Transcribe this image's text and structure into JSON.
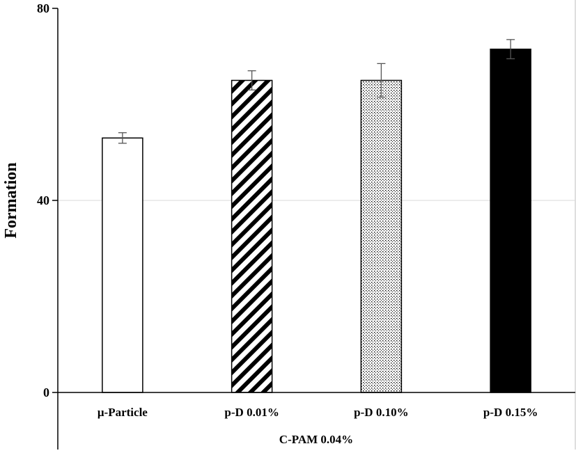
{
  "chart_data": {
    "type": "bar",
    "title": "",
    "xlabel": "C-PAM 0.04%",
    "ylabel": "Formation",
    "ylim": [
      0,
      80
    ],
    "yticks": [
      0,
      40,
      80
    ],
    "grid": "horizontal",
    "categories": [
      "μ-Particle",
      "p-D 0.01%",
      "p-D 0.10%",
      "p-D 0.15%"
    ],
    "values": [
      53,
      65,
      65,
      71.5
    ],
    "errors": [
      1.1,
      2,
      3.5,
      2
    ],
    "fills": [
      "white",
      "diagonal-hatch",
      "dotted",
      "solid-black"
    ]
  }
}
